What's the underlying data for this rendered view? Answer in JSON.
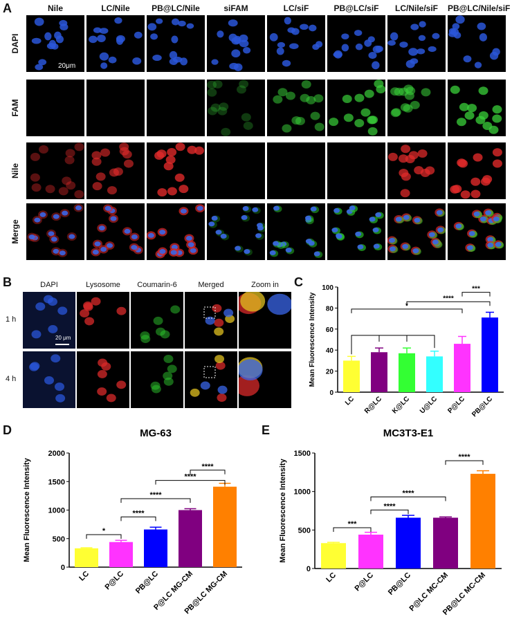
{
  "panel_a": {
    "label": "A",
    "columns": [
      "Nile",
      "LC/Nile",
      "PB@LC/Nile",
      "siFAM",
      "LC/siF",
      "PB@LC/siF",
      "LC/Nile/siF",
      "PB@LC/Nile/siF"
    ],
    "rows": [
      "DAPI",
      "FAM",
      "Nile",
      "Merge"
    ],
    "scale_bar": "20μm"
  },
  "panel_b": {
    "label": "B",
    "columns": [
      "DAPI",
      "Lysosome",
      "Coumarin-6",
      "Merged",
      "Zoom in"
    ],
    "rows": [
      "1 h",
      "4 h"
    ],
    "scale_bar": "20 μm"
  },
  "chart_data": [
    {
      "panel": "C",
      "type": "bar",
      "title": "",
      "xlabel": "",
      "ylabel": "Mean Fluorescence Intensity",
      "categories": [
        "LC",
        "R@LC",
        "K@LC",
        "U@LC",
        "P@LC",
        "PB@LC"
      ],
      "values": [
        30,
        38,
        37,
        34,
        46,
        71
      ],
      "errors": [
        4,
        4,
        5,
        5,
        7,
        5
      ],
      "colors": [
        "#ffff33",
        "#800080",
        "#33ff33",
        "#33ffff",
        "#ff33ff",
        "#0000ff"
      ],
      "yticks": [
        0,
        20,
        40,
        60,
        80,
        100
      ],
      "ylim": [
        0,
        100
      ],
      "significance": [
        "*",
        "****",
        "***"
      ]
    },
    {
      "panel": "D",
      "type": "bar",
      "title": "MG-63",
      "xlabel": "",
      "ylabel": "Mean Fluorescence Intensity",
      "categories": [
        "LC",
        "P@LC",
        "PB@LC",
        "P@LC MG-CM",
        "PB@LC MG-CM"
      ],
      "values": [
        330,
        440,
        660,
        1000,
        1410
      ],
      "errors": [
        10,
        30,
        40,
        25,
        60
      ],
      "colors": [
        "#ffff33",
        "#ff33ff",
        "#0000ff",
        "#800080",
        "#ff8000"
      ],
      "yticks": [
        0,
        500,
        1000,
        1500,
        2000
      ],
      "ylim": [
        0,
        2000
      ],
      "significance": [
        "*",
        "****",
        "****",
        "****",
        "****"
      ]
    },
    {
      "panel": "E",
      "type": "bar",
      "title": "MC3T3-E1",
      "xlabel": "",
      "ylabel": "Mean Fluorescence Intensity",
      "categories": [
        "LC",
        "P@LC",
        "PB@LC",
        "P@LC MC-CM",
        "PB@LC MC-CM"
      ],
      "values": [
        330,
        440,
        660,
        660,
        1230
      ],
      "errors": [
        10,
        30,
        30,
        10,
        40
      ],
      "colors": [
        "#ffff33",
        "#ff33ff",
        "#0000ff",
        "#800080",
        "#ff8000"
      ],
      "yticks": [
        0,
        500,
        1000,
        1500
      ],
      "ylim": [
        0,
        1500
      ],
      "significance": [
        "***",
        "****",
        "****",
        "****"
      ]
    }
  ]
}
